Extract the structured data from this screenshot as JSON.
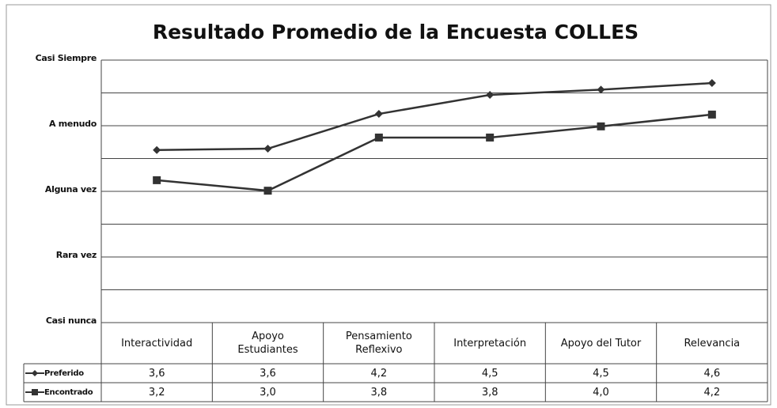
{
  "chart_data": {
    "type": "line",
    "title": "Resultado Promedio de la Encuesta COLLES",
    "categories": [
      "Interactividad",
      "Apoyo Estudiantes",
      "Pensamiento Reflexivo",
      "Interpretación",
      "Apoyo del Tutor",
      "Relevancia"
    ],
    "series": [
      {
        "name": "Preferido",
        "color": "#333333",
        "marker": "diamond",
        "values": [
          3.63,
          3.65,
          4.18,
          4.47,
          4.55,
          4.65
        ],
        "value_labels": [
          "3,6",
          "3,6",
          "4,2",
          "4,5",
          "4,5",
          "4,6"
        ]
      },
      {
        "name": "Encontrado",
        "color": "#333333",
        "marker": "square",
        "values": [
          3.17,
          3.01,
          3.82,
          3.82,
          3.99,
          4.17
        ],
        "value_labels": [
          "3,2",
          "3,0",
          "3,8",
          "3,8",
          "4,0",
          "4,2"
        ]
      }
    ],
    "ylim": [
      1,
      5
    ],
    "yticks": [
      {
        "value": 1,
        "label": "Casi nunca"
      },
      {
        "value": 2,
        "label": "Rara vez"
      },
      {
        "value": 3,
        "label": "Alguna vez"
      },
      {
        "value": 4,
        "label": "A menudo"
      },
      {
        "value": 5,
        "label": "Casi Siempre"
      }
    ],
    "minor_yticks": [
      1.5,
      2.5,
      3.5,
      4.5
    ],
    "grid": true
  }
}
